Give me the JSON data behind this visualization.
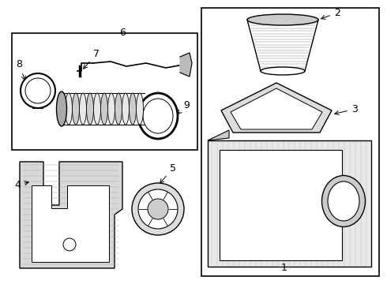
{
  "background_color": "#ffffff",
  "line_color": "#000000",
  "figsize": [
    4.9,
    3.6
  ],
  "dpi": 100
}
